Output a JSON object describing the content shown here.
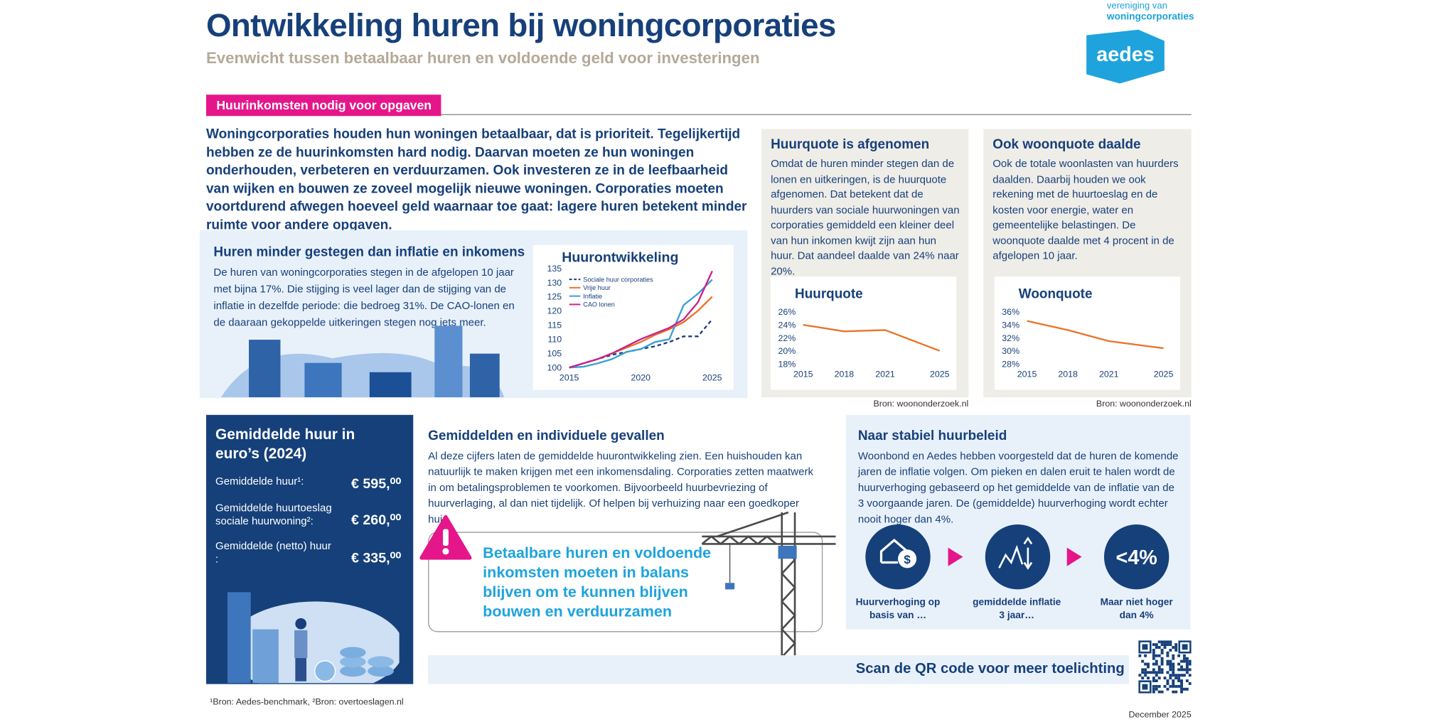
{
  "header": {
    "title": "Ontwikkeling huren bij woningcorporaties",
    "subtitle": "Evenwicht tussen betaalbaar huren en voldoende geld voor investeringen",
    "logo_top": "vereniging van",
    "logo_bottom": "woningcorporaties",
    "logo_text": "aedes"
  },
  "section_label": "Huurinkomsten nodig voor opgaven",
  "intro": "Woningcorporaties houden hun woningen betaalbaar, dat is prioriteit. Tegelijkertijd hebben ze de huurinkomsten hard nodig. Daarvan moeten ze hun woningen onderhouden, verbeteren en verduurzamen. Ook investeren ze in de leefbaarheid van wijken en bouwen ze zoveel mogelijk nieuwe woningen. Corporaties moeten voortdurend afwegen hoeveel geld waarnaar toe gaat: lagere huren betekent minder ruimte voor andere opgaven.",
  "huren": {
    "title": "Huren minder gestegen dan inflatie en inkomens",
    "text": "De huren van woningcorporaties stegen in de afgelopen 10 jaar met bijna 17%. Die stijging is veel lager dan de stijging van de inflatie in dezelfde periode: die bedroeg 31%. De CAO-lonen en de daaraan gekoppelde uitkeringen stegen nog iets meer.",
    "chart": {
      "type": "line",
      "title": "Huurontwikkeling",
      "x": [
        2015,
        2016,
        2017,
        2018,
        2019,
        2020,
        2021,
        2022,
        2023,
        2024,
        2025
      ],
      "xlim": [
        2015,
        2025
      ],
      "xticks": [
        2015,
        2020,
        2025
      ],
      "ylim": [
        100,
        135
      ],
      "yticks": [
        100,
        105,
        110,
        115,
        120,
        125,
        130,
        135
      ],
      "series": [
        {
          "name": "Sociale huur corporaties",
          "color": "#1b3f7a",
          "style": "dashed",
          "values": [
            100,
            101.5,
            103,
            104.5,
            105.5,
            106.5,
            107.5,
            109,
            111,
            111,
            117
          ]
        },
        {
          "name": "Vrije huur",
          "color": "#e8742a",
          "values": [
            100,
            101.5,
            103,
            105,
            107,
            109,
            111.5,
            113.5,
            116,
            120,
            125
          ]
        },
        {
          "name": "Inflatie",
          "color": "#3aa0d8",
          "values": [
            100,
            100.3,
            101.5,
            103,
            105.5,
            106.5,
            109,
            110,
            122,
            126,
            131
          ]
        },
        {
          "name": "CAO lonen",
          "color": "#c9228a",
          "values": [
            100,
            101.5,
            103,
            105,
            107.5,
            110,
            112,
            114,
            117,
            123,
            134
          ]
        }
      ]
    }
  },
  "huurquote": {
    "title": "Huurquote is afgenomen",
    "text": "Omdat de huren minder stegen dan de lonen en uitkeringen, is de huurquote afgenomen. Dat betekent dat de huurders van sociale huurwoningen van corporaties gemiddeld een kleiner deel van hun inkomen kwijt zijn aan hun huur. Dat aandeel daalde van 24% naar 20%.",
    "source": "Bron: woononderzoek.nl",
    "chart": {
      "type": "line",
      "title": "Huurquote",
      "x": [
        2015,
        2018,
        2021,
        2025
      ],
      "values": [
        24,
        23,
        23.2,
        20
      ],
      "color": "#e8742a",
      "xlim": [
        2015,
        2025
      ],
      "xticks": [
        2015,
        2018,
        2021,
        2025
      ],
      "ylim": [
        18,
        26
      ],
      "yticks": [
        {
          "value": 18,
          "label": "18%"
        },
        {
          "value": 20,
          "label": "20%"
        },
        {
          "value": 22,
          "label": "22%"
        },
        {
          "value": 24,
          "label": "24%"
        },
        {
          "value": 26,
          "label": "26%"
        }
      ]
    }
  },
  "woonquote": {
    "title": "Ook woonquote daalde",
    "text": "Ook de totale woonlasten van huurders daalden. Daarbij houden we ook rekening met de huurtoeslag en de kosten voor energie, water en gemeentelijke belastingen. De woonquote daalde met 4 procent in de afgelopen 10 jaar.",
    "source": "Bron: woononderzoek.nl",
    "chart": {
      "type": "line",
      "title": "Woonquote",
      "x": [
        2015,
        2018,
        2021,
        2025
      ],
      "values": [
        34.6,
        33.2,
        31.5,
        30.4
      ],
      "color": "#e8742a",
      "xlim": [
        2015,
        2025
      ],
      "xticks": [
        2015,
        2018,
        2021,
        2025
      ],
      "ylim": [
        28,
        36
      ],
      "yticks": [
        {
          "value": 28,
          "label": "28%"
        },
        {
          "value": 30,
          "label": "30%"
        },
        {
          "value": 32,
          "label": "32%"
        },
        {
          "value": 34,
          "label": "34%"
        },
        {
          "value": 36,
          "label": "36%"
        }
      ]
    }
  },
  "gemiddelde_huur": {
    "title": "Gemiddelde huur in euro’s (2024)",
    "rows": [
      {
        "label": "Gemiddelde huur¹:",
        "value": "€ 595,⁰⁰"
      },
      {
        "label": "Gemiddelde huurtoeslag sociale huurwoning²:",
        "value": "€ 260,⁰⁰"
      },
      {
        "label": "Gemiddelde (netto) huur :",
        "value": "€ 335,⁰⁰"
      }
    ],
    "footnote": "¹Bron: Aedes-benchmark, ²Bron: overtoeslagen.nl"
  },
  "gevallen": {
    "title": "Gemiddelden en individuele gevallen",
    "text": "Al deze cijfers laten de gemiddelde huurontwikkeling zien. Een huishouden kan natuurlijk te maken krijgen met een inkomensdaling. Corporaties zetten maatwerk in om betalingsproblemen te voorkomen. Bijvoorbeeld huurbevriezing of huurverlaging, al dan niet tijdelijk. Of helpen bij verhuizing naar een goedkoper huis.",
    "callout": "Betaalbare huren en voldoende inkomsten moeten in balans blijven om te kunnen blijven bouwen en verduurzamen"
  },
  "beleid": {
    "title": "Naar stabiel huurbeleid",
    "text": "Woonbond en Aedes hebben voorgesteld dat de huren de komende jaren de inflatie volgen. Om pieken en dalen eruit te halen wordt de huurverhoging gebaseerd op het gemiddelde van de inflatie van de 3 voorgaande jaren. De (gemiddelde) huurverhoging wordt echter nooit hoger dan 4%.",
    "steps": [
      {
        "label": "Huurverhoging op basis van …"
      },
      {
        "label": "gemiddelde inflatie 3 jaar…"
      },
      {
        "icon_text": "<4%",
        "label": "Maar niet hoger dan 4%"
      }
    ]
  },
  "qr_text": "Scan de QR code voor meer toelichting",
  "date": "December 2025"
}
